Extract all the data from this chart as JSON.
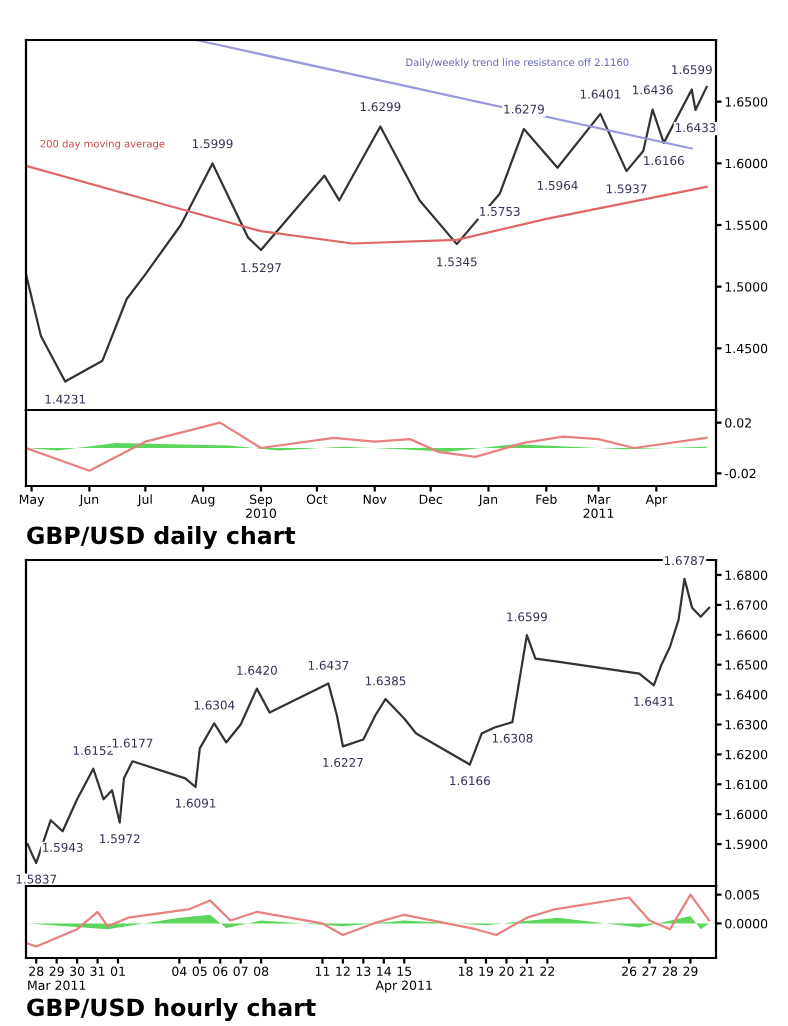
{
  "chart_data": [
    {
      "type": "line",
      "xlim": [
        "2010-04-28",
        "2011-05-03"
      ],
      "ylim": [
        1.4,
        1.7
      ],
      "yticks": [
        {
          "value": 1.45,
          "label": "1.4500"
        },
        {
          "value": 1.5,
          "label": "1.5000"
        },
        {
          "value": 1.55,
          "label": "1.5500"
        },
        {
          "value": 1.6,
          "label": "1.6000"
        },
        {
          "value": 1.65,
          "label": "1.6500"
        }
      ],
      "tick_labels": "y",
      "grid": false,
      "legend": false,
      "series": [
        {
          "color": "#333333",
          "x": [
            "2010-04-28",
            "2010-05-06",
            "2010-05-19",
            "2010-06-08",
            "2010-06-21",
            "2010-07-01",
            "2010-07-20",
            "2010-08-06",
            "2010-08-25",
            "2010-09-01",
            "2010-10-05",
            "2010-10-13",
            "2010-11-04",
            "2010-11-25",
            "2010-12-15",
            "2011-01-07",
            "2011-01-20",
            "2011-02-07",
            "2011-03-02",
            "2011-03-16",
            "2011-03-25",
            "2011-03-30",
            "2011-04-05",
            "2011-04-20",
            "2011-04-22",
            "2011-04-28"
          ],
          "values": [
            1.51,
            1.46,
            1.4231,
            1.44,
            1.49,
            1.51,
            1.55,
            1.5999,
            1.54,
            1.5297,
            1.59,
            1.57,
            1.6299,
            1.57,
            1.5345,
            1.5753,
            1.6279,
            1.5964,
            1.6401,
            1.5937,
            1.61,
            1.6436,
            1.6166,
            1.6599,
            1.6433,
            1.662
          ]
        },
        {
          "color": "#e06666",
          "x": [
            "2010-04-28",
            "2010-07-15",
            "2010-09-01",
            "2010-10-20",
            "2010-12-15",
            "2011-02-01",
            "2011-04-28"
          ],
          "values": [
            1.598,
            1.565,
            1.545,
            1.535,
            1.538,
            1.555,
            1.581
          ]
        },
        {
          "color": "#9999dd",
          "x": [
            "2010-07-28",
            "2011-04-20"
          ],
          "values": [
            1.7,
            1.612
          ]
        }
      ],
      "annotations": [
        {
          "text": "1.4231",
          "x": "2010-05-19",
          "y": 1.4231
        },
        {
          "text": "1.5999",
          "x": "2010-08-06",
          "y": 1.5999
        },
        {
          "text": "1.5297",
          "x": "2010-09-01",
          "y": 1.5297
        },
        {
          "text": "1.6299",
          "x": "2010-11-04",
          "y": 1.6299
        },
        {
          "text": "1.5345",
          "x": "2010-12-15",
          "y": 1.5345
        },
        {
          "text": "1.5753",
          "x": "2011-01-07",
          "y": 1.5753
        },
        {
          "text": "1.6279",
          "x": "2011-01-20",
          "y": 1.6279
        },
        {
          "text": "1.5964",
          "x": "2011-02-07",
          "y": 1.5964
        },
        {
          "text": "1.6401",
          "x": "2011-03-02",
          "y": 1.6401
        },
        {
          "text": "1.5937",
          "x": "2011-03-16",
          "y": 1.5937
        },
        {
          "text": "1.6436",
          "x": "2011-03-30",
          "y": 1.6436
        },
        {
          "text": "1.6166",
          "x": "2011-04-05",
          "y": 1.6166
        },
        {
          "text": "1.6599",
          "x": "2011-04-20",
          "y": 1.6599
        },
        {
          "text": "1.6433",
          "x": "2011-04-22",
          "y": 1.6433
        },
        "200 day moving average",
        "Daily/weekly trend line resistance off 2.1160"
      ]
    },
    {
      "type": "line",
      "xlim": [
        "2010-04-28",
        "2011-05-03"
      ],
      "ylim": [
        -0.03,
        0.03
      ],
      "xticks": [
        {
          "value": "2010-05-01",
          "label": "May"
        },
        {
          "value": "2010-06-01",
          "label": "Jun"
        },
        {
          "value": "2010-07-01",
          "label": "Jul"
        },
        {
          "value": "2010-08-01",
          "label": "Aug"
        },
        {
          "value": "2010-09-01",
          "label": "Sep\n2010"
        },
        {
          "value": "2010-10-01",
          "label": "Oct"
        },
        {
          "value": "2010-11-01",
          "label": "Nov"
        },
        {
          "value": "2010-12-01",
          "label": "Dec"
        },
        {
          "value": "2011-01-01",
          "label": "Jan"
        },
        {
          "value": "2011-02-01",
          "label": "Feb"
        },
        {
          "value": "2011-03-01",
          "label": "Mar\n2011"
        },
        {
          "value": "2011-04-01",
          "label": "Apr"
        }
      ],
      "yticks": [
        -0.02,
        0.02
      ],
      "grid": false,
      "legend": false,
      "xlabel": "GBP/USD daily chart",
      "series": [
        {
          "color": "#e8807f",
          "x": [
            "2010-04-28",
            "2010-06-01",
            "2010-07-01",
            "2010-08-10",
            "2010-09-01",
            "2010-10-10",
            "2010-11-01",
            "2010-11-20",
            "2010-12-05",
            "2010-12-25",
            "2011-01-20",
            "2011-02-10",
            "2011-03-01",
            "2011-03-20",
            "2011-04-28"
          ],
          "values": [
            0.0,
            -0.018,
            0.005,
            0.02,
            0.0,
            0.008,
            0.005,
            0.007,
            -0.003,
            -0.007,
            0.004,
            0.009,
            0.007,
            0.0,
            0.008
          ]
        },
        {
          "type": "area",
          "color": "#33cc33",
          "x": [
            "2010-04-28",
            "2010-05-15",
            "2010-06-15",
            "2010-07-15",
            "2010-08-15",
            "2010-09-10",
            "2010-10-15",
            "2010-11-15",
            "2010-12-10",
            "2011-01-15",
            "2011-02-15",
            "2011-03-15",
            "2011-04-28"
          ],
          "values": [
            0.0,
            -0.002,
            0.004,
            0.003,
            0.002,
            -0.002,
            0.001,
            -0.001,
            -0.003,
            0.003,
            0.001,
            -0.001,
            0.001
          ]
        }
      ]
    },
    {
      "type": "line",
      "xlim": [
        "2011-03-27T12:00",
        "2011-04-30T06:00"
      ],
      "ylim": [
        1.576,
        1.685
      ],
      "tick_labels": "y",
      "yticks": [
        {
          "value": 1.59,
          "label": "1.5900"
        },
        {
          "value": 1.6,
          "label": "1.6000"
        },
        {
          "value": 1.61,
          "label": "1.6100"
        },
        {
          "value": 1.62,
          "label": "1.6200"
        },
        {
          "value": 1.63,
          "label": "1.6300"
        },
        {
          "value": 1.64,
          "label": "1.6400"
        },
        {
          "value": 1.65,
          "label": "1.6500"
        },
        {
          "value": 1.66,
          "label": "1.6600"
        },
        {
          "value": 1.67,
          "label": "1.6700"
        },
        {
          "value": 1.68,
          "label": "1.6800"
        }
      ],
      "grid": false,
      "legend": false,
      "series": [
        {
          "color": "#333333",
          "x": [
            "2011-03-27T14:00",
            "2011-03-27T20:00",
            "2011-03-28T00:00",
            "2011-03-28T17:00",
            "2011-03-29T07:00",
            "2011-03-30T00:00",
            "2011-03-30T19:00",
            "2011-03-31T07:00",
            "2011-03-31T17:00",
            "2011-04-01T02:00",
            "2011-04-01T07:00",
            "2011-04-01T17:00",
            "2011-04-04T07:00",
            "2011-04-04T19:00",
            "2011-04-05T00:00",
            "2011-04-05T17:00",
            "2011-04-06T07:00",
            "2011-04-07T00:00",
            "2011-04-07T19:00",
            "2011-04-08T10:00",
            "2011-04-11T07:00",
            "2011-04-11T17:00",
            "2011-04-12T00:00",
            "2011-04-13T00:00",
            "2011-04-13T14:00",
            "2011-04-14T02:00",
            "2011-04-15T00:00",
            "2011-04-15T14:00",
            "2011-04-18T05:00",
            "2011-04-18T19:00",
            "2011-04-19T10:00",
            "2011-04-20T07:00",
            "2011-04-21T00:00",
            "2011-04-21T10:00",
            "2011-04-22T12:00",
            "2011-04-26T12:00",
            "2011-04-27T05:00",
            "2011-04-27T14:00",
            "2011-04-28T00:00",
            "2011-04-28T10:00",
            "2011-04-28T17:00",
            "2011-04-29T02:00",
            "2011-04-29T12:00",
            "2011-04-29T22:00"
          ],
          "values": [
            1.59,
            1.586,
            1.5837,
            1.598,
            1.5943,
            1.605,
            1.6152,
            1.605,
            1.608,
            1.5972,
            1.612,
            1.6177,
            1.612,
            1.6091,
            1.622,
            1.6304,
            1.624,
            1.63,
            1.642,
            1.634,
            1.6437,
            1.633,
            1.6227,
            1.625,
            1.633,
            1.6385,
            1.632,
            1.627,
            1.6166,
            1.627,
            1.629,
            1.6308,
            1.6599,
            1.652,
            1.651,
            1.647,
            1.6431,
            1.65,
            1.656,
            1.665,
            1.6787,
            1.669,
            1.666,
            1.669
          ]
        }
      ],
      "annotations": [
        {
          "text": "1.5837",
          "x": "2011-03-28T00:00",
          "y": 1.5837
        },
        {
          "text": "1.5943",
          "x": "2011-03-29T07:00",
          "y": 1.5943
        },
        {
          "text": "1.6152",
          "x": "2011-03-30T19:00",
          "y": 1.6152
        },
        {
          "text": "1.5972",
          "x": "2011-04-01T02:00",
          "y": 1.5972
        },
        {
          "text": "1.6177",
          "x": "2011-04-01T17:00",
          "y": 1.6177
        },
        {
          "text": "1.6091",
          "x": "2011-04-04T19:00",
          "y": 1.6091
        },
        {
          "text": "1.6304",
          "x": "2011-04-05T17:00",
          "y": 1.6304
        },
        {
          "text": "1.6420",
          "x": "2011-04-07T19:00",
          "y": 1.642
        },
        {
          "text": "1.6437",
          "x": "2011-04-11T07:00",
          "y": 1.6437
        },
        {
          "text": "1.6227",
          "x": "2011-04-12T00:00",
          "y": 1.6227
        },
        {
          "text": "1.6385",
          "x": "2011-04-14T02:00",
          "y": 1.6385
        },
        {
          "text": "1.6166",
          "x": "2011-04-18T05:00",
          "y": 1.6166
        },
        {
          "text": "1.6308",
          "x": "2011-04-20T07:00",
          "y": 1.6308
        },
        {
          "text": "1.6599",
          "x": "2011-04-21T00:00",
          "y": 1.6599
        },
        {
          "text": "1.6431",
          "x": "2011-04-27T05:00",
          "y": 1.6431
        },
        {
          "text": "1.6787",
          "x": "2011-04-28T17:00",
          "y": 1.6787
        }
      ]
    },
    {
      "type": "line",
      "xlim": [
        "2011-03-27T12:00",
        "2011-04-30T06:00"
      ],
      "ylim": [
        -0.006,
        0.0065
      ],
      "xticks": [
        {
          "value": "2011-03-28",
          "label": "28"
        },
        {
          "value": "2011-03-29",
          "label": "29\nMar 2011"
        },
        {
          "value": "2011-03-30",
          "label": "30"
        },
        {
          "value": "2011-03-31",
          "label": "31"
        },
        {
          "value": "2011-04-01",
          "label": "01"
        },
        {
          "value": "2011-04-04",
          "label": "04"
        },
        {
          "value": "2011-04-05",
          "label": "05"
        },
        {
          "value": "2011-04-06",
          "label": "06"
        },
        {
          "value": "2011-04-07",
          "label": "07"
        },
        {
          "value": "2011-04-08",
          "label": "08"
        },
        {
          "value": "2011-04-11",
          "label": "11"
        },
        {
          "value": "2011-04-12",
          "label": "12"
        },
        {
          "value": "2011-04-13",
          "label": "13"
        },
        {
          "value": "2011-04-14",
          "label": "14"
        },
        {
          "value": "2011-04-15",
          "label": "15\nApr 2011"
        },
        {
          "value": "2011-04-18",
          "label": "18"
        },
        {
          "value": "2011-04-19",
          "label": "19"
        },
        {
          "value": "2011-04-20",
          "label": "20"
        },
        {
          "value": "2011-04-21",
          "label": "21"
        },
        {
          "value": "2011-04-22",
          "label": "22"
        },
        {
          "value": "2011-04-26",
          "label": "26"
        },
        {
          "value": "2011-04-27",
          "label": "27"
        },
        {
          "value": "2011-04-28",
          "label": "28"
        },
        {
          "value": "2011-04-29",
          "label": "29"
        }
      ],
      "yticks": [
        {
          "value": 0,
          "label": "0.0000"
        },
        0.005
      ],
      "grid": false,
      "legend": false,
      "xlabel": "GBP/USD hourly chart",
      "series": [
        {
          "color": "#e8807f",
          "x": [
            "2011-03-27T14:00",
            "2011-03-28T00:00",
            "2011-03-30T00:00",
            "2011-03-31T00:00",
            "2011-03-31T12:00",
            "2011-04-01T12:00",
            "2011-04-04T12:00",
            "2011-04-05T12:00",
            "2011-04-06T12:00",
            "2011-04-07T19:00",
            "2011-04-11T00:00",
            "2011-04-12T00:00",
            "2011-04-13T12:00",
            "2011-04-15T00:00",
            "2011-04-18T12:00",
            "2011-04-19T12:00",
            "2011-04-21T00:00",
            "2011-04-22T10:00",
            "2011-04-26T00:00",
            "2011-04-27T00:00",
            "2011-04-28T00:00",
            "2011-04-29T00:00",
            "2011-04-29T22:00"
          ],
          "values": [
            -0.0035,
            -0.004,
            -0.001,
            0.002,
            -0.0005,
            0.001,
            0.0025,
            0.004,
            0.0005,
            0.002,
            0.0,
            -0.002,
            0.0,
            0.0015,
            -0.001,
            -0.002,
            0.001,
            0.0025,
            0.0045,
            0.0005,
            -0.001,
            0.005,
            0.0005
          ]
        },
        {
          "type": "area",
          "color": "#33cc33",
          "x": [
            "2011-03-27T14:00",
            "2011-03-31T12:00",
            "2011-04-04T00:00",
            "2011-04-05T12:00",
            "2011-04-06T07:00",
            "2011-04-08T00:00",
            "2011-04-12T00:00",
            "2011-04-15T00:00",
            "2011-04-19T00:00",
            "2011-04-22T12:00",
            "2011-04-26T12:00",
            "2011-04-29T00:00",
            "2011-04-29T12:00",
            "2011-04-29T22:00"
          ],
          "values": [
            0,
            -0.001,
            0.001,
            0.0015,
            -0.0008,
            0.0005,
            -0.0005,
            0.0005,
            -0.0003,
            0.001,
            -0.0007,
            0.0013,
            -0.001,
            0
          ]
        }
      ]
    }
  ]
}
